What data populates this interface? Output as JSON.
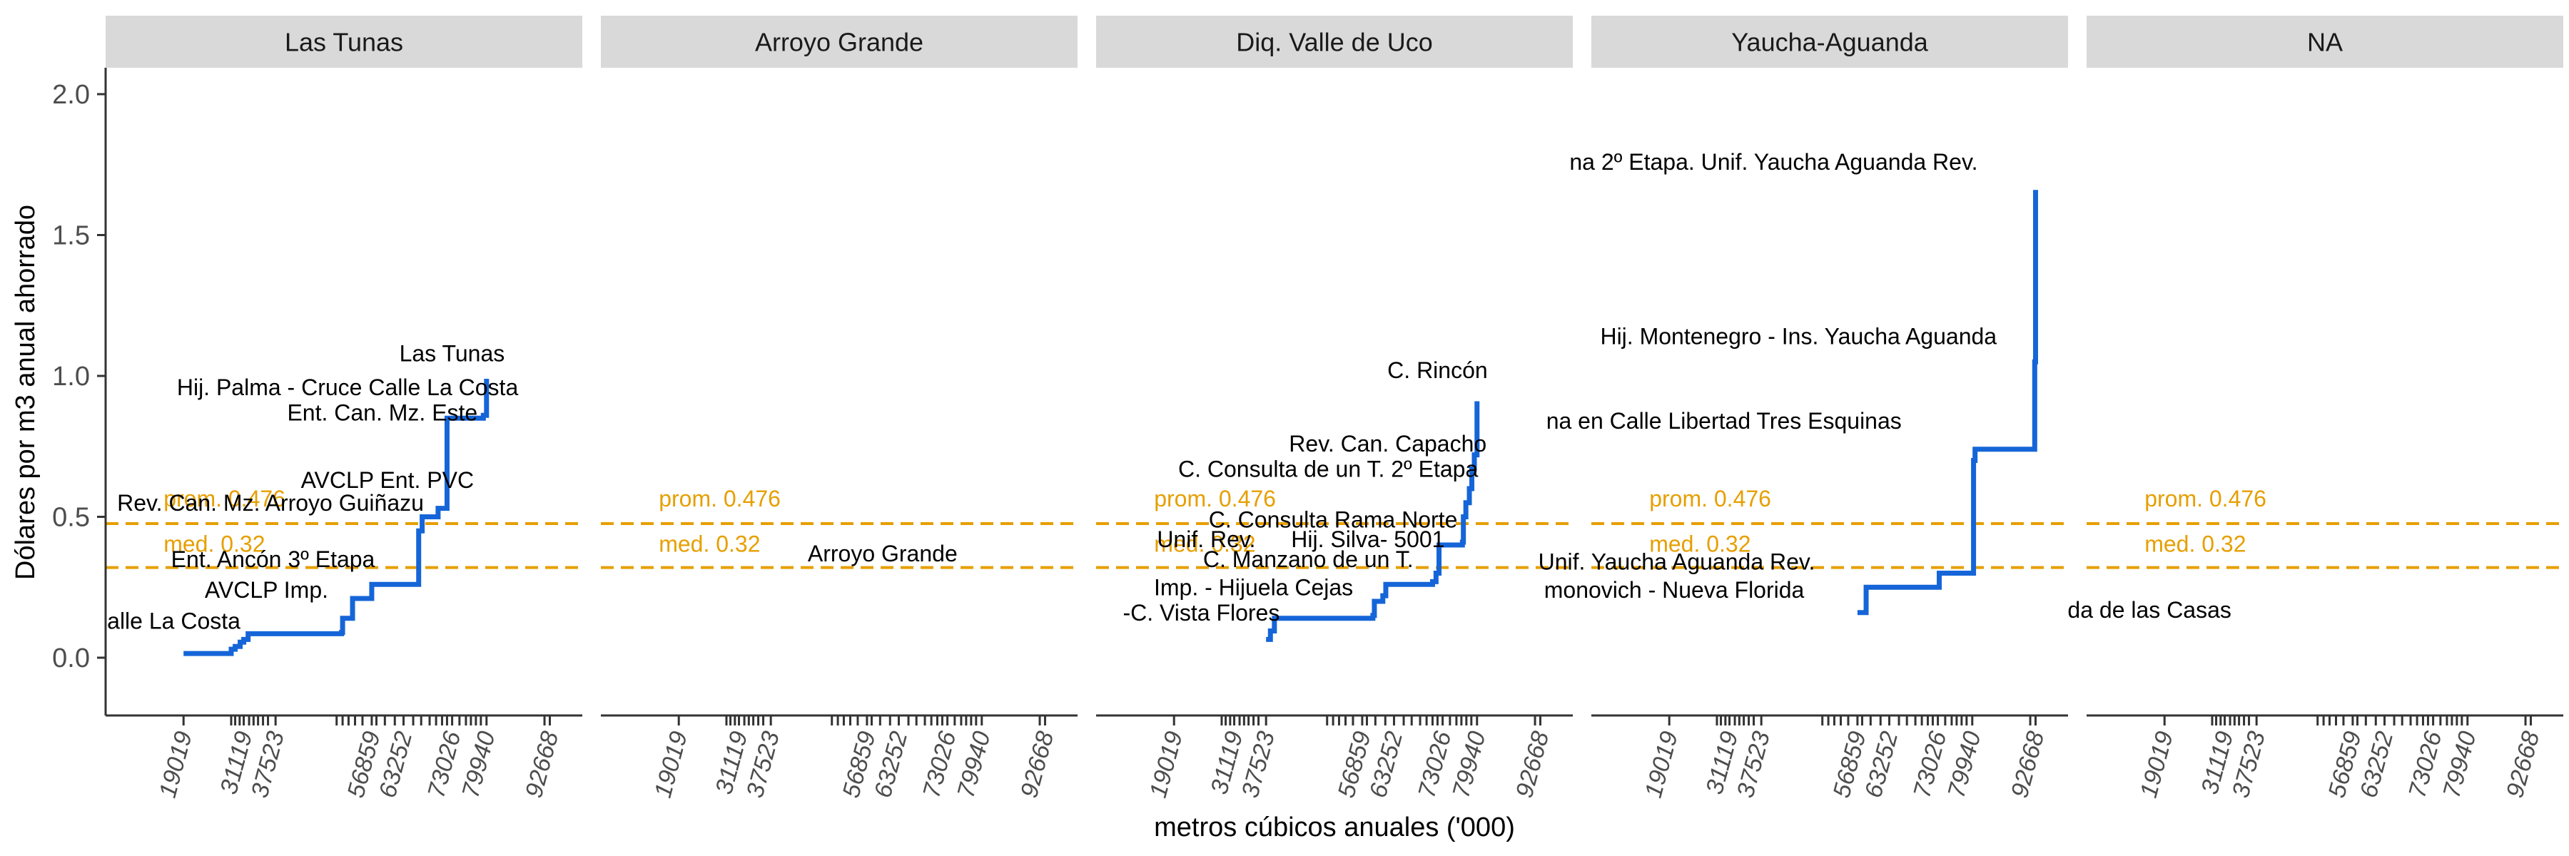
{
  "chart_data": {
    "type": "line",
    "xlabel": "metros cúbicos anuales ('000)",
    "ylabel": "Dólares por m3 anual ahorrado",
    "ylim": [
      -0.2,
      2.1
    ],
    "y_ticks": [
      0.0,
      0.5,
      1.0,
      1.5,
      2.0
    ],
    "y_tick_labels": [
      "0.0",
      "0.5",
      "1.0",
      "1.5",
      "2.0"
    ],
    "x_ticks": [
      19019,
      31119,
      37523,
      56859,
      63252,
      73026,
      79940,
      92668
    ],
    "x_tick_labels": [
      "19019",
      "31119",
      "37523",
      "56859",
      "63252",
      "73026",
      "79940",
      "92668"
    ],
    "grid": false,
    "rug_positions": [
      19019,
      28600,
      29400,
      30300,
      31119,
      32200,
      33100,
      34000,
      35000,
      36000,
      37523,
      49800,
      51000,
      52200,
      53500,
      55000,
      56859,
      57800,
      59500,
      61500,
      63252,
      65200,
      66800,
      68500,
      69800,
      71000,
      72000,
      73026,
      74500,
      75800,
      76800,
      77800,
      78800,
      79940,
      91600,
      92668
    ],
    "reference_lines": [
      {
        "label": "prom. 0.476",
        "value": 0.476
      },
      {
        "label": "med. 0.32",
        "value": 0.32
      }
    ],
    "colors": {
      "step_line": "#1565D8",
      "reference": "#E69F00",
      "strip_bg": "#D9D9D9",
      "axis": "#333333"
    },
    "panels": [
      {
        "name": "Las Tunas",
        "series": [
          {
            "x": 19019,
            "y": 0.015
          },
          {
            "x": 28000,
            "y": 0.015
          },
          {
            "x": 28600,
            "y": 0.03
          },
          {
            "x": 29400,
            "y": 0.04
          },
          {
            "x": 30400,
            "y": 0.055
          },
          {
            "x": 31119,
            "y": 0.065
          },
          {
            "x": 32000,
            "y": 0.085
          },
          {
            "x": 50800,
            "y": 0.09
          },
          {
            "x": 51000,
            "y": 0.14
          },
          {
            "x": 53000,
            "y": 0.21
          },
          {
            "x": 56859,
            "y": 0.26
          },
          {
            "x": 66000,
            "y": 0.26
          },
          {
            "x": 66300,
            "y": 0.45
          },
          {
            "x": 67000,
            "y": 0.5
          },
          {
            "x": 70200,
            "y": 0.53
          },
          {
            "x": 72000,
            "y": 0.85
          },
          {
            "x": 79300,
            "y": 0.86
          },
          {
            "x": 79940,
            "y": 0.99
          }
        ],
        "labels": [
          {
            "text": "Calle La Costa",
            "x": 15400,
            "y": 0.13
          },
          {
            "text": "AVCLP Imp.",
            "x": 35700,
            "y": 0.24
          },
          {
            "text": "Ent. Ancón 3º Etapa",
            "x": 37000,
            "y": 0.35
          },
          {
            "text": "Rev. Can. Mz. Arroyo Guiñazu",
            "x": 36500,
            "y": 0.55
          },
          {
            "text": "AVCLP Ent. PVC",
            "x": 60000,
            "y": 0.63
          },
          {
            "text": "Ent. Can. Mz. Este",
            "x": 59000,
            "y": 0.87
          },
          {
            "text": "Hij. Palma - Cruce Calle La Costa",
            "x": 52000,
            "y": 0.96
          },
          {
            "text": "Las Tunas",
            "x": 73000,
            "y": 1.08
          }
        ]
      },
      {
        "name": "Arroyo Grande",
        "series": [],
        "labels": [
          {
            "text": "Arroyo Grande",
            "x": 60000,
            "y": 0.37
          }
        ]
      },
      {
        "name": "Diq. Valle de Uco",
        "series": [
          {
            "x": 37523,
            "y": 0.065
          },
          {
            "x": 38400,
            "y": 0.095
          },
          {
            "x": 39200,
            "y": 0.14
          },
          {
            "x": 59000,
            "y": 0.15
          },
          {
            "x": 59300,
            "y": 0.2
          },
          {
            "x": 61000,
            "y": 0.22
          },
          {
            "x": 61600,
            "y": 0.26
          },
          {
            "x": 63252,
            "y": 0.26
          },
          {
            "x": 71000,
            "y": 0.27
          },
          {
            "x": 71700,
            "y": 0.3
          },
          {
            "x": 72300,
            "y": 0.4
          },
          {
            "x": 77000,
            "y": 0.41
          },
          {
            "x": 77200,
            "y": 0.5
          },
          {
            "x": 77700,
            "y": 0.55
          },
          {
            "x": 78400,
            "y": 0.6
          },
          {
            "x": 78900,
            "y": 0.67
          },
          {
            "x": 79400,
            "y": 0.72
          },
          {
            "x": 79940,
            "y": 0.91
          }
        ],
        "labels": [
          {
            "text": "-C. Vista Flores",
            "x": 24500,
            "y": 0.16
          },
          {
            "text": "Imp. - Hijuela Cejas",
            "x": 35000,
            "y": 0.25
          },
          {
            "text": "C. Manzano de un T.",
            "x": 46000,
            "y": 0.35
          },
          {
            "text": "Unif. Rev.",
            "x": 25500,
            "y": 0.42
          },
          {
            "text": "Hij. Silva- 5001",
            "x": 58000,
            "y": 0.42
          },
          {
            "text": "C. Consulta Rama Norte",
            "x": 51000,
            "y": 0.49
          },
          {
            "text": "C. Consulta de un T. 2º Etapa",
            "x": 50000,
            "y": 0.67
          },
          {
            "text": "Rev. Can. Capacho",
            "x": 62000,
            "y": 0.76
          },
          {
            "text": "C. Rincón",
            "x": 72000,
            "y": 1.02
          }
        ]
      },
      {
        "name": "Yaucha-Aguanda",
        "series": [
          {
            "x": 56859,
            "y": 0.16
          },
          {
            "x": 58000,
            "y": 0.16
          },
          {
            "x": 58600,
            "y": 0.25
          },
          {
            "x": 73026,
            "y": 0.25
          },
          {
            "x": 73300,
            "y": 0.3
          },
          {
            "x": 79940,
            "y": 0.3
          },
          {
            "x": 80200,
            "y": 0.7
          },
          {
            "x": 80500,
            "y": 0.74
          },
          {
            "x": 92400,
            "y": 0.74
          },
          {
            "x": 92500,
            "y": 1.05
          },
          {
            "x": 92668,
            "y": 1.66
          }
        ],
        "labels": [
          {
            "text": "monovich - Nueva Florida",
            "x": 20000,
            "y": 0.24
          },
          {
            "text": "Unif. Yaucha Aguanda Rev.",
            "x": 20500,
            "y": 0.34
          },
          {
            "text": "na en Calle Libertad Tres Esquinas",
            "x": 30000,
            "y": 0.84
          },
          {
            "text": "Hij. Montenegro - Ins. Yaucha Aguanda",
            "x": 45000,
            "y": 1.14
          },
          {
            "text": "na 2º Etapa. Unif. Yaucha Aguanda Rev.",
            "x": 40000,
            "y": 1.76
          }
        ]
      },
      {
        "name": "NA",
        "series": [],
        "labels": [
          {
            "text": "da de las Casas",
            "x": 16000,
            "y": 0.17
          }
        ]
      }
    ]
  }
}
